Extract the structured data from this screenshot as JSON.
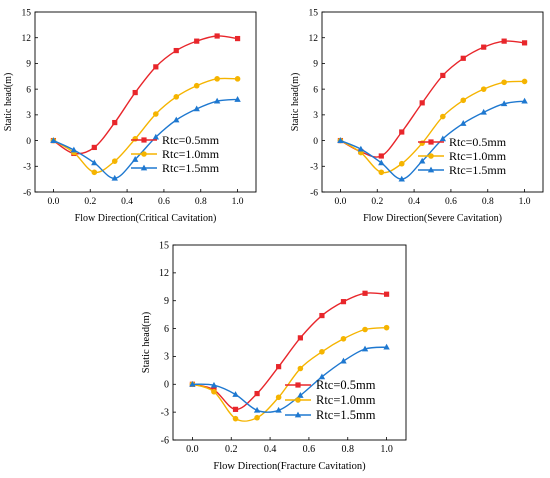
{
  "chart_data": [
    {
      "type": "line",
      "title": "",
      "xlabel": "Flow Direction(Critical Cavitation)",
      "ylabel": "Static head(m)",
      "xlim": [
        -0.1,
        1.1
      ],
      "ylim": [
        -6,
        15
      ],
      "xticks": [
        "0.0",
        "0.2",
        "0.4",
        "0.6",
        "0.8",
        "1.0"
      ],
      "yticks": [
        "-6",
        "-3",
        "0",
        "3",
        "6",
        "9",
        "12",
        "15"
      ],
      "grid": false,
      "legend_position": "lower-right",
      "series": [
        {
          "name": "Rtc=0.5mm",
          "color": "#e8262b",
          "marker": "square",
          "x": [
            0,
            0.111,
            0.222,
            0.333,
            0.444,
            0.556,
            0.667,
            0.778,
            0.889,
            1.0
          ],
          "y": [
            0,
            -1.5,
            -0.8,
            2.1,
            5.6,
            8.6,
            10.5,
            11.6,
            12.2,
            11.9
          ]
        },
        {
          "name": "Rtc=1.0mm",
          "color": "#f5b400",
          "marker": "circle",
          "x": [
            0,
            0.111,
            0.222,
            0.333,
            0.444,
            0.556,
            0.667,
            0.778,
            0.889,
            1.0
          ],
          "y": [
            0,
            -1.4,
            -3.7,
            -2.4,
            0.2,
            3.1,
            5.1,
            6.4,
            7.2,
            7.2
          ]
        },
        {
          "name": "Rtc=1.5mm",
          "color": "#1e78d0",
          "marker": "triangle",
          "x": [
            0,
            0.111,
            0.222,
            0.333,
            0.444,
            0.556,
            0.667,
            0.778,
            0.889,
            1.0
          ],
          "y": [
            0,
            -1.1,
            -2.6,
            -4.4,
            -2.2,
            0.4,
            2.4,
            3.7,
            4.6,
            4.8
          ]
        }
      ]
    },
    {
      "type": "line",
      "title": "",
      "xlabel": "Flow Direction(Severe Cavitation)",
      "ylabel": "Static head(m)",
      "xlim": [
        -0.1,
        1.1
      ],
      "ylim": [
        -6,
        15
      ],
      "xticks": [
        "0.0",
        "0.2",
        "0.4",
        "0.6",
        "0.8",
        "1.0"
      ],
      "yticks": [
        "-6",
        "-3",
        "0",
        "3",
        "6",
        "9",
        "12",
        "15"
      ],
      "grid": false,
      "legend_position": "lower-right",
      "series": [
        {
          "name": "Rtc=0.5mm",
          "color": "#e8262b",
          "marker": "square",
          "x": [
            0,
            0.111,
            0.222,
            0.333,
            0.444,
            0.556,
            0.667,
            0.778,
            0.889,
            1.0
          ],
          "y": [
            0,
            -1.3,
            -1.8,
            1.0,
            4.4,
            7.6,
            9.6,
            10.9,
            11.6,
            11.4
          ]
        },
        {
          "name": "Rtc=1.0mm",
          "color": "#f5b400",
          "marker": "circle",
          "x": [
            0,
            0.111,
            0.222,
            0.333,
            0.444,
            0.556,
            0.667,
            0.778,
            0.889,
            1.0
          ],
          "y": [
            0,
            -1.4,
            -3.7,
            -2.7,
            -0.3,
            2.8,
            4.7,
            6.0,
            6.8,
            6.9
          ]
        },
        {
          "name": "Rtc=1.5mm",
          "color": "#1e78d0",
          "marker": "triangle",
          "x": [
            0,
            0.111,
            0.222,
            0.333,
            0.444,
            0.556,
            0.667,
            0.778,
            0.889,
            1.0
          ],
          "y": [
            0,
            -1.0,
            -2.6,
            -4.5,
            -2.4,
            0.2,
            2.0,
            3.3,
            4.3,
            4.6
          ]
        }
      ]
    },
    {
      "type": "line",
      "title": "",
      "xlabel": "Flow Direction(Fracture Cavitation)",
      "ylabel": "Static head(m)",
      "xlim": [
        -0.1,
        1.1
      ],
      "ylim": [
        -6,
        15
      ],
      "xticks": [
        "0.0",
        "0.2",
        "0.4",
        "0.6",
        "0.8",
        "1.0"
      ],
      "yticks": [
        "-6",
        "-3",
        "0",
        "3",
        "6",
        "9",
        "12",
        "15"
      ],
      "grid": false,
      "legend_position": "lower-right",
      "series": [
        {
          "name": "Rtc=0.5mm",
          "color": "#e8262b",
          "marker": "square",
          "x": [
            0,
            0.111,
            0.222,
            0.333,
            0.444,
            0.556,
            0.667,
            0.778,
            0.889,
            1.0
          ],
          "y": [
            0,
            -0.6,
            -2.7,
            -1.0,
            1.9,
            5.0,
            7.4,
            8.9,
            9.8,
            9.7
          ]
        },
        {
          "name": "Rtc=1.0mm",
          "color": "#f5b400",
          "marker": "circle",
          "x": [
            0,
            0.111,
            0.222,
            0.333,
            0.444,
            0.556,
            0.667,
            0.778,
            0.889,
            1.0
          ],
          "y": [
            0,
            -0.8,
            -3.7,
            -3.6,
            -1.4,
            1.7,
            3.5,
            4.9,
            5.9,
            6.1
          ]
        },
        {
          "name": "Rtc=1.5mm",
          "color": "#1e78d0",
          "marker": "triangle",
          "x": [
            0,
            0.111,
            0.222,
            0.333,
            0.444,
            0.556,
            0.667,
            0.778,
            0.889,
            1.0
          ],
          "y": [
            0,
            -0.1,
            -1.1,
            -2.8,
            -2.8,
            -1.2,
            0.8,
            2.5,
            3.8,
            4.0
          ]
        }
      ]
    }
  ]
}
